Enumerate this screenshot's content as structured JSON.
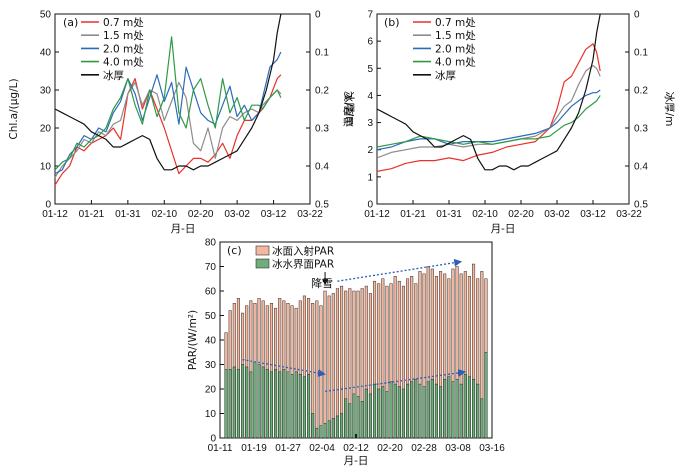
{
  "chart_data": [
    {
      "panel": "(a)",
      "type": "line",
      "xlabel": "月-日",
      "ylabel": "Chl.a/(μg/L)",
      "y2label": "冰厚/m",
      "xticks": [
        "01-12",
        "01-21",
        "01-31",
        "02-10",
        "02-20",
        "03-02",
        "03-12",
        "03-22"
      ],
      "xlim": [
        0,
        70
      ],
      "ylim": [
        0,
        50
      ],
      "yticks": [
        "0",
        "10",
        "20",
        "30",
        "40",
        "50"
      ],
      "y2lim": [
        0.5,
        0
      ],
      "y2ticks": [
        "0",
        "0.1",
        "0.2",
        "0.3",
        "0.4",
        "0.5"
      ],
      "legend_position": "top-left",
      "series": [
        {
          "name": "0.7 m处",
          "color": "#e8322c",
          "axis": "left",
          "x": [
            0,
            2,
            4,
            6,
            8,
            10,
            12,
            14,
            16,
            18,
            20,
            22,
            24,
            26,
            28,
            30,
            32,
            34,
            36,
            38,
            40,
            42,
            44,
            46,
            48,
            50,
            52,
            54,
            56,
            57,
            59,
            61,
            62
          ],
          "y": [
            5,
            8,
            10,
            15,
            14,
            16,
            17,
            18,
            20,
            17,
            29,
            33,
            25,
            30,
            25,
            20,
            14,
            8,
            10,
            12,
            12,
            11,
            13,
            16,
            12,
            18,
            22,
            22,
            24,
            25,
            28,
            33,
            34
          ]
        },
        {
          "name": "1.5 m处",
          "color": "#8c8c8c",
          "axis": "left",
          "x": [
            0,
            2,
            4,
            6,
            8,
            10,
            12,
            14,
            16,
            18,
            20,
            22,
            24,
            26,
            28,
            30,
            32,
            34,
            36,
            38,
            40,
            42,
            44,
            46,
            48,
            50,
            52,
            54,
            56,
            57,
            59,
            61,
            62
          ],
          "y": [
            7,
            10,
            12,
            14,
            17,
            16,
            19,
            18,
            21,
            22,
            29,
            32,
            26,
            30,
            29,
            22,
            27,
            32,
            28,
            16,
            14,
            20,
            12,
            20,
            23,
            22,
            24,
            25,
            24,
            26,
            28,
            30,
            29
          ]
        },
        {
          "name": "2.0 m处",
          "color": "#2c6bb8",
          "axis": "left",
          "x": [
            0,
            2,
            4,
            6,
            8,
            10,
            12,
            14,
            16,
            18,
            20,
            22,
            24,
            26,
            28,
            30,
            32,
            34,
            36,
            38,
            40,
            42,
            44,
            46,
            48,
            50,
            52,
            54,
            56,
            57,
            59,
            61,
            62
          ],
          "y": [
            8,
            9,
            13,
            15,
            18,
            17,
            20,
            19,
            24,
            27,
            33,
            29,
            22,
            28,
            34,
            27,
            32,
            21,
            36,
            30,
            24,
            22,
            21,
            26,
            31,
            23,
            26,
            22,
            24,
            28,
            36,
            38,
            40
          ]
        },
        {
          "name": "4.0 m处",
          "color": "#2e9a46",
          "axis": "left",
          "x": [
            0,
            2,
            4,
            6,
            8,
            10,
            12,
            14,
            16,
            18,
            20,
            22,
            24,
            26,
            28,
            30,
            32,
            34,
            36,
            38,
            40,
            42,
            44,
            46,
            48,
            50,
            52,
            54,
            56,
            57,
            59,
            61,
            62
          ],
          "y": [
            9,
            11,
            12,
            16,
            15,
            17,
            18,
            20,
            25,
            28,
            33,
            26,
            21,
            30,
            23,
            28,
            44,
            24,
            20,
            30,
            33,
            26,
            20,
            33,
            24,
            28,
            22,
            26,
            26,
            25,
            28,
            30,
            28
          ]
        },
        {
          "name": "冰厚",
          "color": "#111111",
          "axis": "right",
          "x": [
            0,
            2,
            4,
            6,
            8,
            10,
            12,
            14,
            15,
            16,
            18,
            20,
            22,
            24,
            26,
            28,
            30,
            32,
            34,
            36,
            38,
            40,
            42,
            44,
            46,
            48,
            50,
            52,
            54,
            56,
            58,
            60,
            61,
            62
          ],
          "y": [
            0.25,
            0.26,
            0.27,
            0.28,
            0.29,
            0.31,
            0.32,
            0.33,
            0.34,
            0.35,
            0.35,
            0.34,
            0.33,
            0.32,
            0.33,
            0.38,
            0.41,
            0.41,
            0.4,
            0.4,
            0.41,
            0.4,
            0.4,
            0.39,
            0.38,
            0.37,
            0.36,
            0.33,
            0.3,
            0.26,
            0.2,
            0.12,
            0.05,
            0.0
          ]
        }
      ]
    },
    {
      "panel": "(b)",
      "type": "line",
      "xlabel": "月-日",
      "ylabel": "温度/℃",
      "y2label": "冰厚/m",
      "xticks": [
        "01-12",
        "01-21",
        "01-31",
        "02-10",
        "02-20",
        "03-02",
        "03-12",
        "03-22"
      ],
      "xlim": [
        0,
        70
      ],
      "ylim": [
        0,
        7
      ],
      "yticks": [
        "0",
        "1",
        "2",
        "3",
        "4",
        "5",
        "6",
        "7"
      ],
      "y2lim": [
        0.5,
        0
      ],
      "y2ticks": [
        "0",
        "0.1",
        "0.2",
        "0.3",
        "0.4",
        "0.5"
      ],
      "legend_position": "top-right",
      "series": [
        {
          "name": "0.7 m处",
          "color": "#e8322c",
          "axis": "left",
          "x": [
            0,
            4,
            8,
            12,
            16,
            20,
            24,
            28,
            32,
            36,
            40,
            44,
            48,
            50,
            52,
            54,
            56,
            58,
            60,
            61,
            62
          ],
          "y": [
            1.2,
            1.3,
            1.5,
            1.6,
            1.6,
            1.7,
            1.6,
            1.8,
            1.9,
            2.1,
            2.2,
            2.3,
            2.8,
            3.5,
            4.5,
            4.7,
            5.2,
            5.7,
            5.9,
            5.6,
            4.9
          ]
        },
        {
          "name": "1.5 m处",
          "color": "#8c8c8c",
          "axis": "left",
          "x": [
            0,
            4,
            8,
            12,
            16,
            20,
            24,
            28,
            32,
            36,
            40,
            44,
            48,
            50,
            52,
            54,
            56,
            58,
            60,
            61,
            62
          ],
          "y": [
            1.7,
            1.9,
            2.0,
            2.1,
            2.1,
            2.2,
            2.1,
            2.2,
            2.2,
            2.3,
            2.4,
            2.5,
            2.8,
            3.2,
            3.6,
            3.8,
            4.4,
            4.9,
            5.1,
            5.0,
            4.7
          ]
        },
        {
          "name": "2.0 m处",
          "color": "#2c6bb8",
          "axis": "left",
          "x": [
            0,
            4,
            8,
            12,
            16,
            20,
            24,
            28,
            32,
            36,
            40,
            44,
            48,
            50,
            52,
            54,
            56,
            58,
            60,
            61,
            62
          ],
          "y": [
            2.0,
            2.1,
            2.3,
            2.4,
            2.4,
            2.2,
            2.3,
            2.3,
            2.3,
            2.4,
            2.5,
            2.6,
            2.8,
            3.0,
            3.3,
            3.6,
            3.8,
            4.0,
            4.1,
            4.1,
            4.2
          ]
        },
        {
          "name": "4.0 m处",
          "color": "#2e9a46",
          "axis": "left",
          "x": [
            0,
            4,
            8,
            12,
            16,
            20,
            24,
            28,
            32,
            36,
            40,
            44,
            48,
            50,
            52,
            54,
            56,
            58,
            60,
            61,
            62
          ],
          "y": [
            2.1,
            2.2,
            2.3,
            2.5,
            2.4,
            2.3,
            2.2,
            2.3,
            2.2,
            2.3,
            2.4,
            2.4,
            2.5,
            2.7,
            2.9,
            3.0,
            3.2,
            3.5,
            3.7,
            3.8,
            4.0
          ]
        },
        {
          "name": "冰厚",
          "color": "#111111",
          "axis": "right",
          "x": [
            0,
            2,
            4,
            6,
            8,
            10,
            12,
            14,
            15,
            16,
            18,
            20,
            22,
            24,
            26,
            28,
            30,
            32,
            34,
            36,
            38,
            40,
            42,
            44,
            46,
            48,
            50,
            52,
            54,
            56,
            58,
            60,
            61,
            62
          ],
          "y": [
            0.25,
            0.26,
            0.27,
            0.28,
            0.29,
            0.31,
            0.32,
            0.33,
            0.34,
            0.35,
            0.35,
            0.34,
            0.33,
            0.32,
            0.33,
            0.38,
            0.41,
            0.41,
            0.4,
            0.4,
            0.41,
            0.4,
            0.4,
            0.39,
            0.38,
            0.37,
            0.36,
            0.33,
            0.3,
            0.26,
            0.2,
            0.12,
            0.05,
            0.0
          ]
        }
      ]
    },
    {
      "panel": "(c)",
      "type": "bar",
      "xlabel": "月-日",
      "ylabel": "PAR/(W/m²)",
      "xticks": [
        "01-11",
        "01-19",
        "01-27",
        "02-04",
        "02-12",
        "02-20",
        "02-28",
        "03-08",
        "03-16"
      ],
      "xlim": [
        0,
        64
      ],
      "ylim": [
        0,
        80
      ],
      "yticks": [
        "0",
        "10",
        "20",
        "30",
        "40",
        "50",
        "60",
        "70",
        "80"
      ],
      "legend_position": "top-left",
      "series": [
        {
          "name": "冰面入射PAR",
          "color": "#f2b8a0",
          "values": [
            43,
            52,
            55,
            57,
            51,
            54,
            56,
            55,
            57,
            56,
            54,
            55,
            53,
            57,
            56,
            55,
            54,
            53,
            56,
            58,
            57,
            55,
            56,
            54,
            60,
            58,
            59,
            61,
            62,
            60,
            61,
            60,
            60,
            61,
            62,
            59,
            64,
            63,
            65,
            62,
            63,
            66,
            64,
            62,
            65,
            66,
            63,
            68,
            67,
            70,
            69,
            66,
            68,
            67,
            65,
            69,
            70,
            67,
            68,
            66,
            71,
            65,
            68,
            65
          ]
        },
        {
          "name": "冰水界面PAR",
          "color": "#6fae7a",
          "values": [
            28,
            28,
            29,
            28,
            30,
            29,
            27,
            31,
            30,
            29,
            28,
            27,
            28,
            27,
            28,
            27,
            26,
            27,
            26,
            25,
            26,
            10,
            4,
            5,
            6,
            7,
            8,
            9,
            10,
            16,
            14,
            18,
            17,
            15,
            20,
            18,
            22,
            20,
            21,
            19,
            23,
            22,
            21,
            20,
            22,
            23,
            24,
            22,
            21,
            23,
            24,
            22,
            21,
            24,
            25,
            23,
            24,
            22,
            26,
            25,
            24,
            22,
            16,
            35
          ]
        }
      ],
      "annotations": [
        {
          "text": "降雪",
          "target_x": 24
        }
      ]
    }
  ]
}
